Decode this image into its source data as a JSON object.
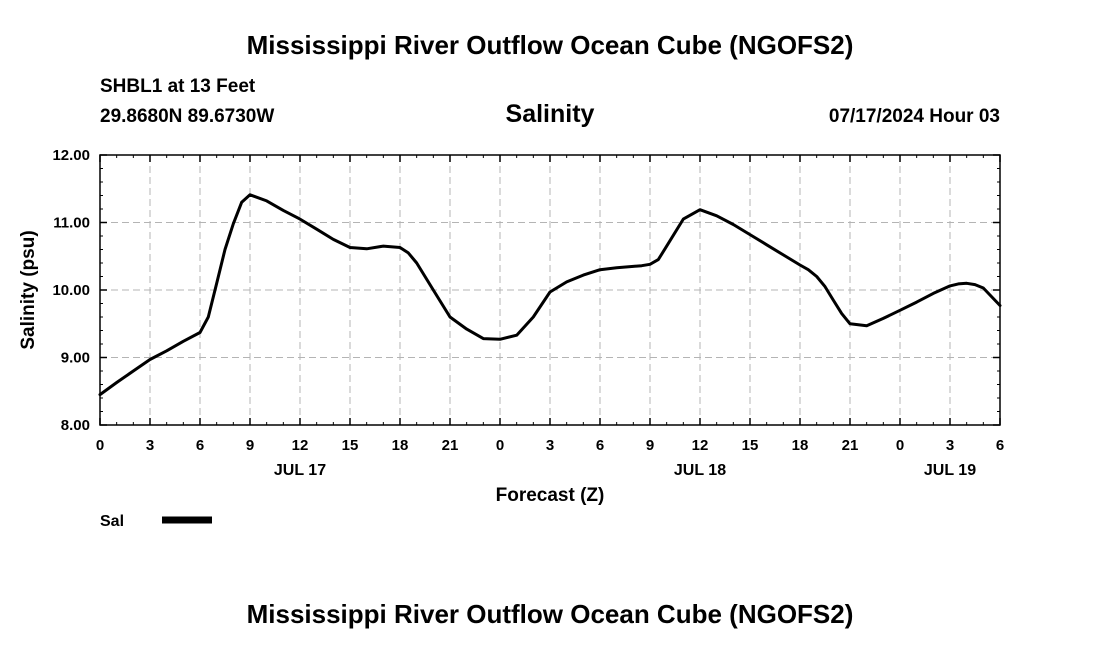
{
  "header": {
    "title": "Mississippi River Outflow Ocean Cube (NGOFS2)",
    "station": "SHBL1 at 13 Feet",
    "coordinates": "29.8680N  89.6730W",
    "subtitle": "Salinity",
    "run_time": "07/17/2024 Hour 03"
  },
  "footer": {
    "title": "Mississippi River Outflow Ocean Cube (NGOFS2)"
  },
  "chart_data": {
    "type": "line",
    "title": "Salinity",
    "xlabel": "Forecast (Z)",
    "ylabel": "Salinity (psu)",
    "xlim": [
      0,
      54
    ],
    "ylim": [
      8.0,
      12.0
    ],
    "grid": true,
    "yticks": [
      "8.00",
      "9.00",
      "10.00",
      "11.00",
      "12.00"
    ],
    "xticks": [
      {
        "h": 0,
        "label": "0"
      },
      {
        "h": 3,
        "label": "3"
      },
      {
        "h": 6,
        "label": "6"
      },
      {
        "h": 9,
        "label": "9"
      },
      {
        "h": 12,
        "label": "12"
      },
      {
        "h": 15,
        "label": "15"
      },
      {
        "h": 18,
        "label": "18"
      },
      {
        "h": 21,
        "label": "21"
      },
      {
        "h": 24,
        "label": "0"
      },
      {
        "h": 27,
        "label": "3"
      },
      {
        "h": 30,
        "label": "6"
      },
      {
        "h": 33,
        "label": "9"
      },
      {
        "h": 36,
        "label": "12"
      },
      {
        "h": 39,
        "label": "15"
      },
      {
        "h": 42,
        "label": "18"
      },
      {
        "h": 45,
        "label": "21"
      },
      {
        "h": 48,
        "label": "0"
      },
      {
        "h": 51,
        "label": "3"
      },
      {
        "h": 54,
        "label": "6"
      }
    ],
    "date_labels": [
      {
        "h": 12,
        "label": "JUL 17"
      },
      {
        "h": 36,
        "label": "JUL 18"
      },
      {
        "h": 51,
        "label": "JUL 19"
      }
    ],
    "legend": {
      "label": "Sal",
      "position": "bottom-left"
    },
    "series": [
      {
        "name": "Sal",
        "color": "#000000",
        "x": [
          0,
          1,
          2,
          3,
          4,
          5,
          6,
          6.5,
          7,
          7.5,
          8,
          8.5,
          9,
          10,
          11,
          12,
          13,
          14,
          15,
          16,
          17,
          18,
          18.5,
          19,
          19.5,
          20,
          21,
          22,
          23,
          24,
          25,
          26,
          27,
          28,
          29,
          30,
          31,
          32,
          32.5,
          33,
          33.5,
          34,
          35,
          36,
          37,
          38,
          39,
          40,
          41,
          42,
          42.5,
          43,
          43.5,
          44,
          44.5,
          45,
          46,
          47,
          48,
          49,
          50,
          51,
          51.5,
          52,
          52.5,
          53,
          54
        ],
        "values": [
          8.45,
          8.63,
          8.8,
          8.97,
          9.1,
          9.24,
          9.37,
          9.6,
          10.1,
          10.6,
          10.98,
          11.3,
          11.41,
          11.32,
          11.18,
          11.05,
          10.9,
          10.75,
          10.63,
          10.61,
          10.65,
          10.63,
          10.55,
          10.4,
          10.2,
          10.0,
          9.6,
          9.42,
          9.28,
          9.27,
          9.33,
          9.6,
          9.97,
          10.12,
          10.22,
          10.3,
          10.33,
          10.35,
          10.36,
          10.38,
          10.45,
          10.65,
          11.05,
          11.19,
          11.1,
          10.97,
          10.82,
          10.67,
          10.52,
          10.37,
          10.3,
          10.2,
          10.05,
          9.85,
          9.65,
          9.5,
          9.47,
          9.58,
          9.7,
          9.82,
          9.95,
          10.06,
          10.09,
          10.1,
          10.08,
          10.03,
          9.77
        ]
      }
    ]
  }
}
